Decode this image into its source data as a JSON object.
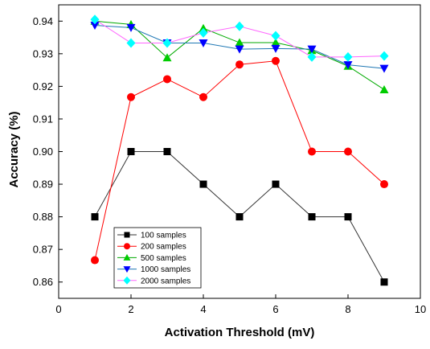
{
  "chart_data": {
    "type": "line",
    "xlabel": "Activation Threshold (mV)",
    "ylabel": "Accuracy (%)",
    "xlim": [
      0,
      10
    ],
    "ylim": [
      0.855,
      0.945
    ],
    "xticks": [
      0,
      2,
      4,
      6,
      8,
      10
    ],
    "yticks": [
      0.86,
      0.87,
      0.88,
      0.89,
      0.9,
      0.91,
      0.92,
      0.93,
      0.94
    ],
    "ytick_labels": [
      "0.86",
      "0.87",
      "0.88",
      "0.89",
      "0.90",
      "0.91",
      "0.92",
      "0.93",
      "0.94"
    ],
    "grid": false,
    "legend_position": "bottom-left",
    "x": [
      1,
      2,
      3,
      4,
      5,
      6,
      7,
      8,
      9
    ],
    "series": [
      {
        "name": "100 samples",
        "color": "#000000",
        "line_color": "#333333",
        "marker": "square",
        "values": [
          0.88,
          0.9,
          0.9,
          0.89,
          0.88,
          0.89,
          0.88,
          0.88,
          0.86
        ]
      },
      {
        "name": "200 samples",
        "color": "#ff0000",
        "line_color": "#ff0000",
        "marker": "circle",
        "values": [
          0.8667,
          0.9167,
          0.9222,
          0.9167,
          0.9267,
          0.9278,
          0.9,
          0.9,
          0.89
        ]
      },
      {
        "name": "500 samples",
        "color": "#00cc00",
        "line_color": "#00aa00",
        "marker": "triangle-up",
        "values": [
          0.94,
          0.939,
          0.9288,
          0.9378,
          0.9334,
          0.9334,
          0.931,
          0.9262,
          0.919
        ]
      },
      {
        "name": "1000 samples",
        "color": "#0000ff",
        "line_color": "#1f77b4",
        "marker": "triangle-down",
        "values": [
          0.9387,
          0.938,
          0.9333,
          0.9333,
          0.9314,
          0.9316,
          0.9314,
          0.9266,
          0.9255
        ]
      },
      {
        "name": "2000 samples",
        "color": "#00ffff",
        "line_color": "#ff66ff",
        "marker": "diamond",
        "values": [
          0.9405,
          0.9333,
          0.9333,
          0.9364,
          0.9384,
          0.9355,
          0.929,
          0.929,
          0.9293
        ]
      }
    ]
  }
}
